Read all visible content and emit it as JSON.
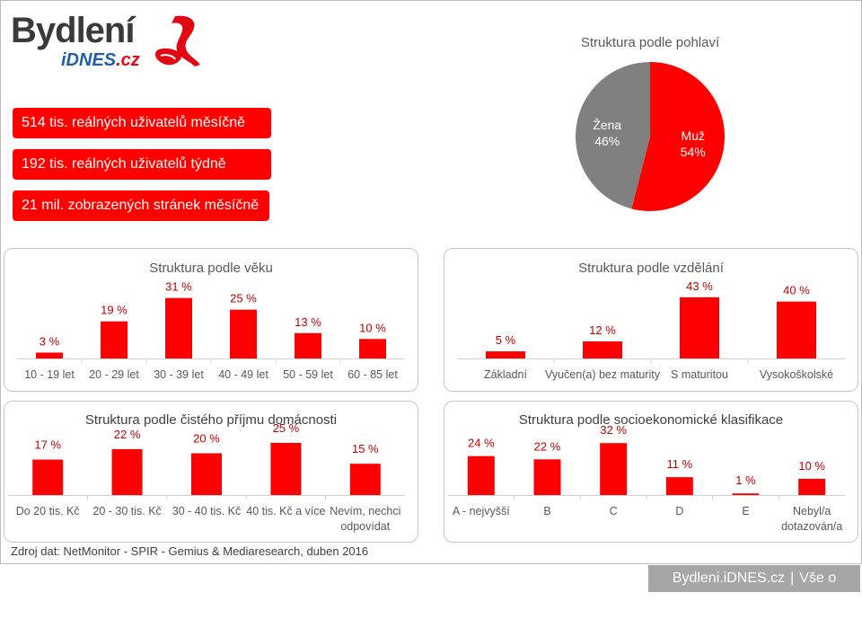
{
  "brand": {
    "name": "Bydlení",
    "sub_a": "iDNES",
    "sub_b": ".cz"
  },
  "stats": [
    "514 tis. reálných uživatelů měsíčně",
    "192 tis. reálných uživatelů týdně",
    "21 mil. zobrazených stránek měsíčně"
  ],
  "colors": {
    "accent": "#ff0000",
    "grey": "#808080",
    "axis": "#d0d0d0",
    "label": "#c00000",
    "tick": "#595959"
  },
  "source": "Zdroj dat: NetMonitor - SPIR - Gemius & Mediaresearch, duben 2016",
  "footer": {
    "link1": "Bydleni.iDNES.cz",
    "separator": "|",
    "link2": "Vše o bydlení"
  },
  "chart_data": [
    {
      "id": "gender",
      "type": "pie",
      "title": "Struktura podle pohlaví",
      "categories": [
        "Muž",
        "Žena"
      ],
      "values": [
        54,
        46
      ],
      "value_labels": [
        "54%",
        "46%"
      ],
      "colors": [
        "#ff0000",
        "#808080"
      ]
    },
    {
      "id": "age",
      "type": "bar",
      "title": "Struktura podle věku",
      "categories": [
        "10 - 19 let",
        "20 - 29 let",
        "30 - 39 let",
        "40 - 49 let",
        "50 - 59 let",
        "60 - 85 let"
      ],
      "values": [
        3,
        19,
        31,
        25,
        13,
        10
      ],
      "value_labels": [
        "3 %",
        "19 %",
        "31 %",
        "25 %",
        "13 %",
        "10 %"
      ],
      "ylim": [
        0,
        35
      ]
    },
    {
      "id": "education",
      "type": "bar",
      "title": "Struktura podle vzdělání",
      "categories": [
        "Základní",
        "Vyučen(a) bez maturity",
        "S maturitou",
        "Vysokoškolské"
      ],
      "values": [
        5,
        12,
        43,
        40
      ],
      "value_labels": [
        "5 %",
        "12 %",
        "43 %",
        "40 %"
      ],
      "ylim": [
        0,
        48
      ]
    },
    {
      "id": "income",
      "type": "bar",
      "title": "Struktura podle čistého příjmu domácnosti",
      "categories": [
        "Do 20 tis. Kč",
        "20 - 30 tis. Kč",
        "30 - 40 tis. Kč",
        "40 tis. Kč a více",
        [
          "Nevím, nechci",
          "odpovídat"
        ]
      ],
      "values": [
        17,
        22,
        20,
        25,
        15
      ],
      "value_labels": [
        "17 %",
        "22 %",
        "20 %",
        "25 %",
        "15 %"
      ],
      "ylim": [
        0,
        28
      ]
    },
    {
      "id": "socio",
      "type": "bar",
      "title": "Struktura podle socioekonomické klasifikace",
      "categories": [
        "A - nejvyšší",
        "B",
        "C",
        "D",
        "E",
        [
          "Nebyl/a",
          "dotazován/a"
        ]
      ],
      "values": [
        24,
        22,
        32,
        11,
        1,
        10
      ],
      "value_labels": [
        "24 %",
        "22 %",
        "32 %",
        "11 %",
        "1 %",
        "10 %"
      ],
      "ylim": [
        0,
        36
      ]
    }
  ]
}
